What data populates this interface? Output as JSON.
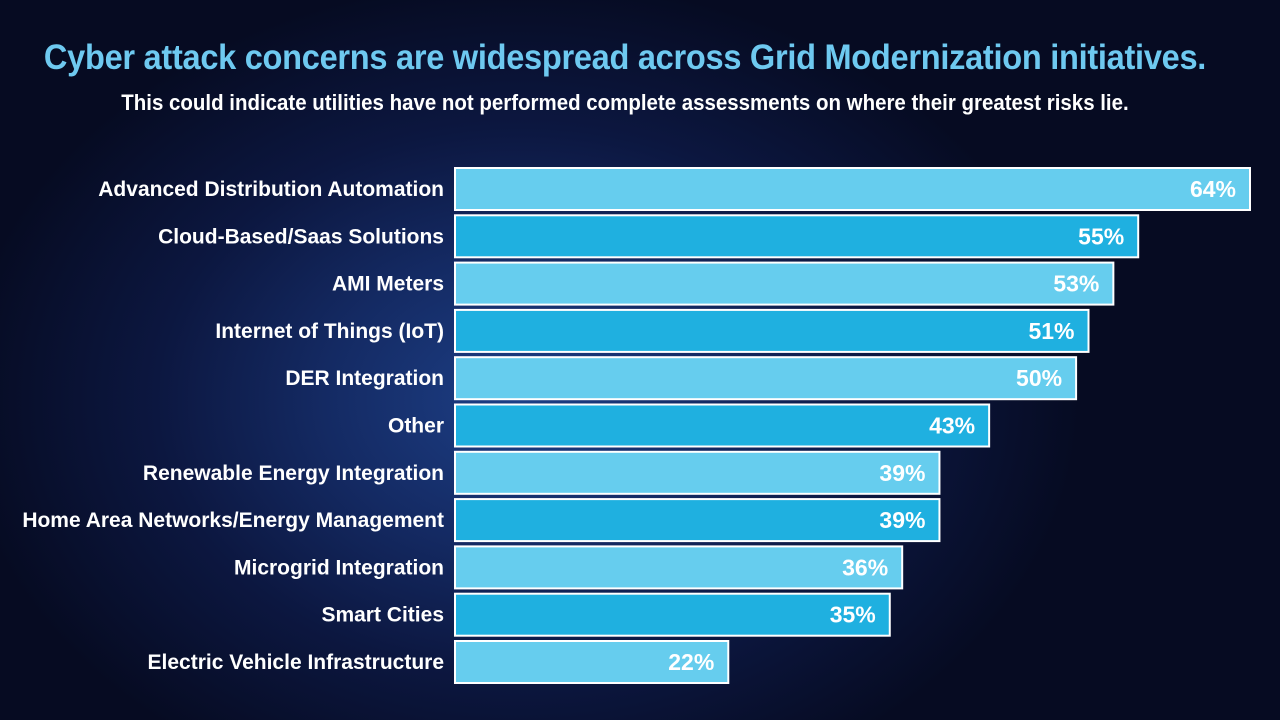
{
  "chart_data": {
    "type": "bar",
    "orientation": "horizontal",
    "title": "Cyber attack concerns are widespread across Grid Modernization initiatives.",
    "subtitle": "This could indicate utilities have not performed complete assessments on where their greatest risks lie.",
    "categories": [
      "Advanced Distribution Automation",
      "Cloud-Based/Saas Solutions",
      "AMI Meters",
      "Internet of Things (IoT)",
      "DER Integration",
      "Other",
      "Renewable Energy Integration",
      "Home Area Networks/Energy Management",
      "Microgrid Integration",
      "Smart Cities",
      "Electric Vehicle Infrastructure"
    ],
    "values": [
      64,
      55,
      53,
      51,
      50,
      43,
      39,
      39,
      36,
      35,
      22
    ],
    "value_labels": [
      "64%",
      "55%",
      "53%",
      "51%",
      "50%",
      "43%",
      "39%",
      "39%",
      "36%",
      "35%",
      "22%"
    ],
    "unit": "%",
    "xlim": [
      0,
      64
    ],
    "xlabel": "",
    "ylabel": "",
    "grid": false,
    "legend": "none",
    "colors": {
      "bar_light": "#66cdee",
      "bar_dark": "#1fb0e0",
      "bar_border": "#ffffff",
      "title": "#6ec9f0",
      "text": "#ffffff"
    }
  }
}
